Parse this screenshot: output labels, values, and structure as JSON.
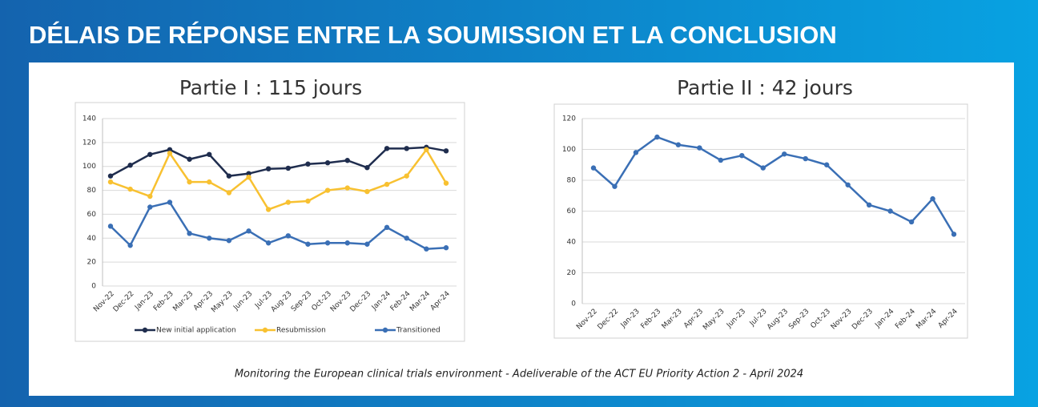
{
  "header": {
    "title": "DÉLAIS DE RÉPONSE ENTRE LA SOUMISSION ET LA CONCLUSION"
  },
  "footer": {
    "text": "Monitoring the European clinical trials environment  - Adeliverable of the ACT EU Priority Action 2 - April 2024"
  },
  "chart_data": [
    {
      "type": "line",
      "title": "Partie I : 115 jours",
      "categories": [
        "Nov-22",
        "Dec-22",
        "Jan-23",
        "Feb-23",
        "Mar-23",
        "Apr-23",
        "May-23",
        "Jun-23",
        "Jul-23",
        "Aug-23",
        "Sep-23",
        "Oct-23",
        "Nov-23",
        "Dec-23",
        "Jan-24",
        "Feb-24",
        "Mar-24",
        "Apr-24"
      ],
      "series": [
        {
          "name": "New initial application",
          "color": "#1f2d4e",
          "values": [
            92,
            101,
            110,
            114,
            106,
            110,
            92,
            94,
            98,
            98.5,
            102,
            103,
            105,
            99,
            115,
            115,
            116,
            113
          ]
        },
        {
          "name": "Resubmission",
          "color": "#f8c131",
          "values": [
            87,
            81,
            75,
            111,
            87,
            87,
            78,
            91,
            64,
            70,
            71,
            80,
            82,
            79,
            85,
            92,
            114,
            86
          ]
        },
        {
          "name": "Transitioned",
          "color": "#3a6fb5",
          "values": [
            50,
            34,
            66,
            70,
            44,
            40,
            38,
            46,
            36,
            42,
            35,
            36,
            36,
            35,
            49,
            40,
            31,
            32
          ]
        }
      ],
      "ylim": [
        0,
        140
      ],
      "yticks": [
        0,
        20,
        40,
        60,
        80,
        100,
        120,
        140
      ],
      "grid": true,
      "legend": "bottom"
    },
    {
      "type": "line",
      "title": "Partie II : 42 jours",
      "categories": [
        "Nov-22",
        "Dec-22",
        "Jan-23",
        "Feb-23",
        "Mar-23",
        "Apr-23",
        "May-23",
        "Jun-23",
        "Jul-23",
        "Aug-23",
        "Sep-23",
        "Oct-23",
        "Nov-23",
        "Dec-23",
        "Jan-24",
        "Feb-24",
        "Mar-24",
        "Apr-24"
      ],
      "values": [
        88,
        76,
        98,
        108,
        103,
        101,
        93,
        96,
        88,
        97,
        94,
        90,
        77,
        64,
        60,
        53,
        68,
        45
      ],
      "color": "#3a6fb5",
      "ylim": [
        0,
        120
      ],
      "yticks": [
        0,
        20,
        40,
        60,
        80,
        100,
        120
      ],
      "grid": true
    }
  ]
}
